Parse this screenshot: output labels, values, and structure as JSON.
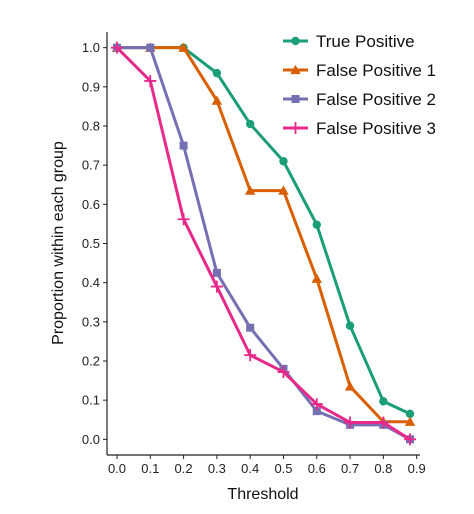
{
  "chart_data": {
    "type": "line",
    "xlabel": "Threshold",
    "ylabel": "Proportion within each group",
    "xlim": [
      -0.03,
      0.91
    ],
    "ylim": [
      -0.04,
      1.04
    ],
    "xticks": [
      0.0,
      0.1,
      0.2,
      0.3,
      0.4,
      0.5,
      0.6,
      0.7,
      0.8,
      0.9
    ],
    "xtick_labels": [
      "0.0",
      "0.1",
      "0.2",
      "0.3",
      "0.4",
      "0.5",
      "0.6",
      "0.7",
      "0.8",
      "0.9"
    ],
    "yticks": [
      0.0,
      0.1,
      0.2,
      0.3,
      0.4,
      0.5,
      0.6,
      0.7,
      0.8,
      0.9,
      1.0
    ],
    "ytick_labels": [
      "0.0",
      "0.1",
      "0.2",
      "0.3",
      "0.4",
      "0.5",
      "0.6",
      "0.7",
      "0.8",
      "0.9",
      "1.0"
    ],
    "grid": false,
    "legend_position": "top-right",
    "x": [
      0.0,
      0.1,
      0.2,
      0.3,
      0.4,
      0.5,
      0.6,
      0.7,
      0.8,
      0.88
    ],
    "series": [
      {
        "name": "True Positive",
        "color": "#1b9e77",
        "marker": "circle",
        "values": [
          1.0,
          1.0,
          1.0,
          0.935,
          0.805,
          0.71,
          0.548,
          0.29,
          0.097,
          0.065
        ]
      },
      {
        "name": "False Positive 1",
        "color": "#d95f02",
        "marker": "triangle",
        "values": [
          1.0,
          1.0,
          1.0,
          0.865,
          0.635,
          0.635,
          0.41,
          0.135,
          0.045,
          0.045
        ]
      },
      {
        "name": "False Positive 2",
        "color": "#7570b3",
        "marker": "square",
        "values": [
          1.0,
          1.0,
          0.75,
          0.425,
          0.285,
          0.18,
          0.072,
          0.037,
          0.037,
          0.0
        ]
      },
      {
        "name": "False Positive 3",
        "color": "#e7298a",
        "marker": "plus",
        "values": [
          1.0,
          0.915,
          0.562,
          0.39,
          0.215,
          0.172,
          0.09,
          0.043,
          0.043,
          0.0
        ]
      }
    ]
  }
}
